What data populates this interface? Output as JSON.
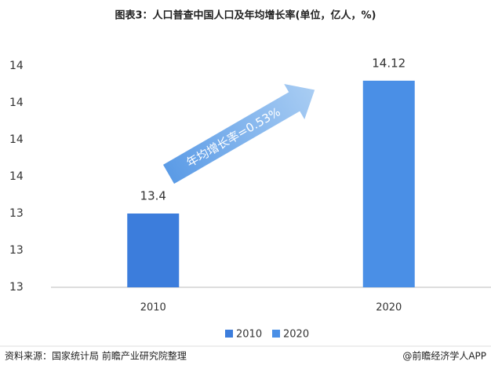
{
  "chart_data": {
    "type": "bar",
    "title": "图表3：人口普查中国人口及年均增长率(单位，亿人，%)",
    "categories": [
      "2010",
      "2020"
    ],
    "values": [
      13.4,
      14.12
    ],
    "colors": [
      "#3c7ddc",
      "#4a8fe6"
    ],
    "ylim": [
      13.0,
      14.2
    ],
    "yticks": [
      13,
      {
        "value": 13.2,
        "label": "13"
      },
      {
        "value": 13.4,
        "label": "13"
      },
      {
        "value": 13.6,
        "label": "14"
      },
      {
        "value": 13.8,
        "label": "14"
      },
      14,
      {
        "value": 14.2,
        "label": "14"
      }
    ],
    "grid": false,
    "legend": "bottom",
    "annotation": "年均增长率=0.53%",
    "source": "资料来源：国家统计局 前瞻产业研究院整理",
    "credit": "@前瞻经济学人APP"
  }
}
